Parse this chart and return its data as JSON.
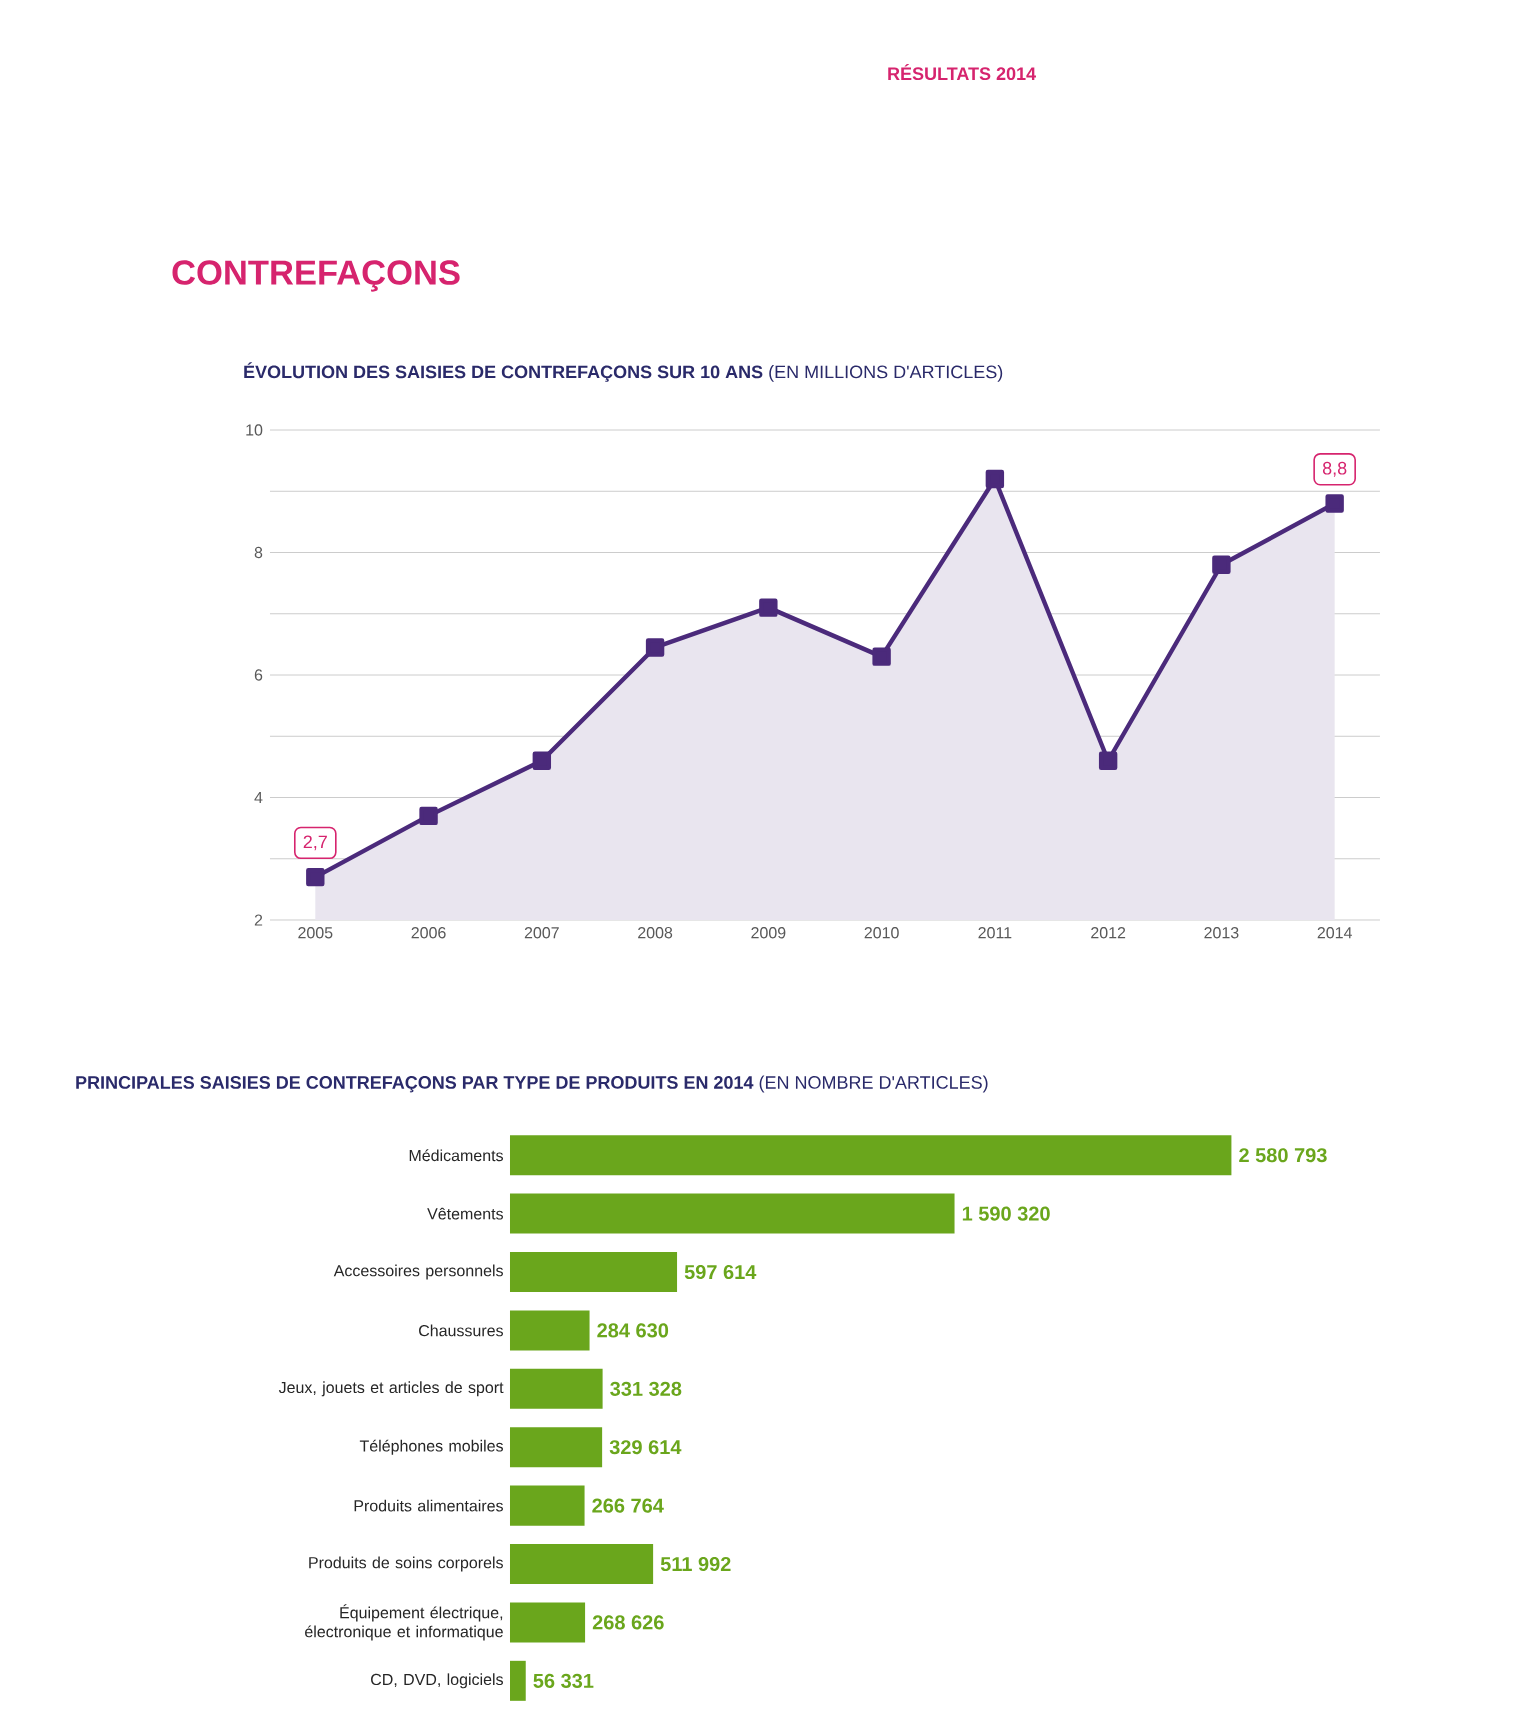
{
  "chart_data": [
    {
      "type": "area",
      "title": "**ÉVOLUTION DES SAISIES DE CONTREFAÇONS SUR 10 ANS** (EN MILLIONS D'ARTICLES)",
      "annotations": [
        "RÉSULTATS 2014",
        "CONTREFAÇONS"
      ],
      "categories": [
        "2005",
        "2006",
        "2007",
        "2008",
        "2009",
        "2010",
        "2011",
        "2012",
        "2013",
        "2014"
      ],
      "series": [
        {
          "color": "#4b2a7b",
          "values": [
            2.7,
            3.7,
            4.6,
            6.45,
            7.1,
            6.3,
            9.2,
            4.6,
            7.8,
            8.8
          ],
          "value_labels": [
            "2,7",
            null,
            null,
            null,
            null,
            null,
            null,
            null,
            null,
            "8,8"
          ]
        }
      ],
      "ylim": [
        2,
        10
      ],
      "yticks": [
        2,
        {
          "value": 3,
          "label": null
        },
        4,
        {
          "value": 5,
          "label": null
        },
        6,
        {
          "value": 7,
          "label": null
        },
        8,
        {
          "value": 9,
          "label": null
        },
        10
      ],
      "grid": "y",
      "marker": "square"
    },
    {
      "type": "bar",
      "orientation": "horizontal",
      "title": "**PRINCIPALES SAISIES DE CONTREFAÇONS PAR TYPE DE PRODUITS EN 2014** (EN NOMBRE D'ARTICLES)",
      "categories": [
        "Médicaments",
        "Vêtements",
        "Accessoires personnels",
        "Chaussures",
        "Jeux, jouets et articles de sport",
        "Téléphones mobiles",
        "Produits alimentaires",
        "Produits de soins corporels",
        "Équipement électrique, électronique et informatique",
        "CD, DVD, logiciels"
      ],
      "values": [
        2580793,
        1590320,
        597614,
        284630,
        331328,
        329614,
        266764,
        511992,
        268626,
        56331
      ],
      "value_labels": [
        "2 580 793",
        "1 590 320",
        "597 614",
        "284 630",
        "331 328",
        "329 614",
        "266 764",
        "511 992",
        "268 626",
        "56 331"
      ],
      "color": "#6aa61c"
    }
  ]
}
